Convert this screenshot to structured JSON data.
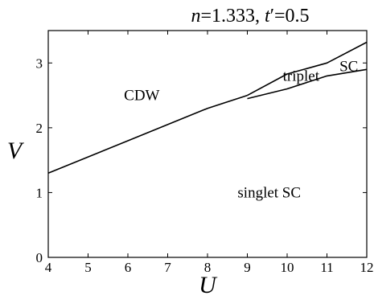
{
  "chart_data": {
    "type": "line",
    "title_parts": {
      "n_sym": "n",
      "n_eq": "=1.333, ",
      "t_sym": "t",
      "t_eq": "′=0.5"
    },
    "xlabel": "U",
    "ylabel": "V",
    "xlim": [
      4,
      12
    ],
    "ylim": [
      0,
      3.5
    ],
    "xticks": [
      "4",
      "5",
      "6",
      "7",
      "8",
      "9",
      "10",
      "11",
      "12"
    ],
    "yticks": [
      "0",
      "1",
      "2",
      "3"
    ],
    "series": [
      {
        "x": [
          4,
          6,
          8,
          9
        ],
        "y": [
          1.3,
          1.8,
          2.3,
          2.5
        ]
      },
      {
        "x": [
          9,
          10,
          11,
          12
        ],
        "y": [
          2.5,
          2.83,
          3.0,
          3.32
        ]
      },
      {
        "x": [
          9,
          10,
          11,
          12
        ],
        "y": [
          2.45,
          2.6,
          2.8,
          2.9
        ]
      }
    ],
    "annotations": [
      {
        "text": "CDW",
        "x": 6.35,
        "y": 2.5
      },
      {
        "text": "singlet  SC",
        "x": 9.55,
        "y": 1.0
      },
      {
        "text": "triplet",
        "x": 10.35,
        "y": 2.8
      },
      {
        "text": "SC",
        "x": 11.55,
        "y": 2.95
      }
    ],
    "grid": false
  }
}
